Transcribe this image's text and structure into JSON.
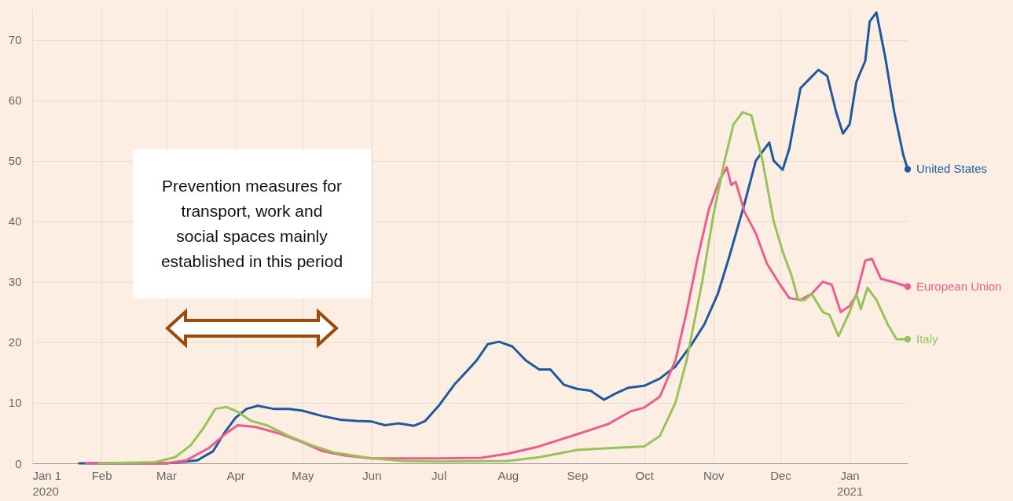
{
  "chart_data": {
    "type": "line",
    "annotations": [
      "Prevention measures for transport, work and social spaces mainly established in this period"
    ],
    "xlim": [
      "2020-01-01",
      "2021-01-27"
    ],
    "ylim": [
      0,
      75
    ],
    "xticks": [
      {
        "value": "2020-01-01",
        "label": "Jan 1\n2020"
      },
      {
        "value": "2020-02-01",
        "label": "Feb"
      },
      {
        "value": "2020-03-01",
        "label": "Mar"
      },
      {
        "value": "2020-04-01",
        "label": "Apr"
      },
      {
        "value": "2020-05-01",
        "label": "May"
      },
      {
        "value": "2020-06-01",
        "label": "Jun"
      },
      {
        "value": "2020-07-01",
        "label": "Jul"
      },
      {
        "value": "2020-08-01",
        "label": "Aug"
      },
      {
        "value": "2020-09-01",
        "label": "Sep"
      },
      {
        "value": "2020-10-01",
        "label": "Oct"
      },
      {
        "value": "2020-11-01",
        "label": "Nov"
      },
      {
        "value": "2020-12-01",
        "label": "Dec"
      },
      {
        "value": "2021-01-01",
        "label": "Jan\n2021"
      }
    ],
    "yticks": [
      0,
      10,
      20,
      30,
      40,
      50,
      60,
      70
    ],
    "grid": true,
    "series": [
      {
        "name": "United States",
        "color": "#1e5aa0",
        "x": [
          "2020-01-22",
          "2020-03-01",
          "2020-03-15",
          "2020-03-22",
          "2020-03-27",
          "2020-04-01",
          "2020-04-06",
          "2020-04-11",
          "2020-04-18",
          "2020-04-25",
          "2020-05-01",
          "2020-05-10",
          "2020-05-18",
          "2020-05-25",
          "2020-06-01",
          "2020-06-07",
          "2020-06-13",
          "2020-06-20",
          "2020-06-25",
          "2020-07-01",
          "2020-07-08",
          "2020-07-13",
          "2020-07-18",
          "2020-07-23",
          "2020-07-28",
          "2020-08-03",
          "2020-08-09",
          "2020-08-15",
          "2020-08-20",
          "2020-08-26",
          "2020-09-01",
          "2020-09-07",
          "2020-09-13",
          "2020-09-18",
          "2020-09-24",
          "2020-10-01",
          "2020-10-08",
          "2020-10-15",
          "2020-10-22",
          "2020-10-28",
          "2020-11-03",
          "2020-11-08",
          "2020-11-15",
          "2020-11-20",
          "2020-11-24",
          "2020-11-26",
          "2020-11-28",
          "2020-12-02",
          "2020-12-05",
          "2020-12-10",
          "2020-12-14",
          "2020-12-18",
          "2020-12-22",
          "2020-12-26",
          "2020-12-29",
          "2021-01-01",
          "2021-01-04",
          "2021-01-08",
          "2021-01-10",
          "2021-01-13",
          "2021-01-17",
          "2021-01-21",
          "2021-01-25",
          "2021-01-27"
        ],
        "values": [
          0,
          0,
          0.5,
          2,
          5,
          7.5,
          9,
          9.5,
          9,
          9,
          8.7,
          7.8,
          7.2,
          7,
          6.9,
          6.3,
          6.6,
          6.2,
          7,
          9.5,
          13,
          15,
          17,
          19.7,
          20.1,
          19.3,
          17,
          15.5,
          15.5,
          13,
          12.3,
          12,
          10.5,
          11.5,
          12.5,
          12.8,
          14,
          16,
          19.5,
          23,
          28,
          34,
          43,
          50,
          52,
          53,
          50,
          48.5,
          52,
          62,
          63.5,
          65,
          64,
          58,
          54.5,
          56,
          63,
          66.5,
          73,
          74.5,
          67,
          58,
          51,
          48.6
        ]
      },
      {
        "name": "European Union",
        "color": "#eb5e8d",
        "x": [
          "2020-01-25",
          "2020-03-01",
          "2020-03-10",
          "2020-03-20",
          "2020-03-28",
          "2020-04-02",
          "2020-04-10",
          "2020-04-20",
          "2020-05-01",
          "2020-05-10",
          "2020-05-20",
          "2020-06-01",
          "2020-07-01",
          "2020-07-20",
          "2020-08-01",
          "2020-08-15",
          "2020-09-01",
          "2020-09-15",
          "2020-09-25",
          "2020-10-01",
          "2020-10-08",
          "2020-10-15",
          "2020-10-20",
          "2020-10-25",
          "2020-10-30",
          "2020-11-04",
          "2020-11-07",
          "2020-11-09",
          "2020-11-11",
          "2020-11-15",
          "2020-11-20",
          "2020-11-25",
          "2020-11-30",
          "2020-12-05",
          "2020-12-10",
          "2020-12-15",
          "2020-12-20",
          "2020-12-24",
          "2020-12-28",
          "2021-01-01",
          "2021-01-04",
          "2021-01-08",
          "2021-01-11",
          "2021-01-15",
          "2021-01-20",
          "2021-01-27"
        ],
        "values": [
          0,
          0,
          0.5,
          2.5,
          5,
          6.3,
          6,
          5,
          3.5,
          2,
          1.3,
          0.8,
          0.8,
          0.9,
          1.6,
          2.8,
          4.8,
          6.5,
          8.6,
          9.2,
          11,
          17,
          25,
          34,
          42,
          47,
          48.9,
          46,
          46.5,
          41.5,
          38,
          33,
          30,
          27.3,
          27,
          28,
          30,
          29.5,
          25,
          26,
          27.8,
          33.5,
          33.8,
          30.5,
          30,
          29.2
        ]
      },
      {
        "name": "Italy",
        "color": "#96c45a",
        "x": [
          "2020-01-31",
          "2020-02-25",
          "2020-03-05",
          "2020-03-12",
          "2020-03-18",
          "2020-03-23",
          "2020-03-28",
          "2020-04-02",
          "2020-04-08",
          "2020-04-15",
          "2020-04-25",
          "2020-05-05",
          "2020-05-15",
          "2020-06-01",
          "2020-06-15",
          "2020-07-01",
          "2020-08-01",
          "2020-08-15",
          "2020-09-01",
          "2020-09-15",
          "2020-10-01",
          "2020-10-08",
          "2020-10-15",
          "2020-10-20",
          "2020-10-27",
          "2020-11-01",
          "2020-11-06",
          "2020-11-10",
          "2020-11-14",
          "2020-11-18",
          "2020-11-23",
          "2020-11-28",
          "2020-12-02",
          "2020-12-06",
          "2020-12-09",
          "2020-12-12",
          "2020-12-15",
          "2020-12-20",
          "2020-12-23",
          "2020-12-27",
          "2021-01-01",
          "2021-01-04",
          "2021-01-06",
          "2021-01-09",
          "2021-01-13",
          "2021-01-18",
          "2021-01-22",
          "2021-01-27"
        ],
        "values": [
          0,
          0.2,
          1,
          3,
          6,
          9,
          9.3,
          8.5,
          7,
          6.3,
          4.5,
          3,
          1.8,
          0.8,
          0.4,
          0.3,
          0.4,
          1,
          2.2,
          2.5,
          2.8,
          4.5,
          10,
          17,
          30,
          41,
          50,
          56,
          58,
          57.5,
          50,
          40,
          35,
          31,
          27,
          27,
          28,
          25,
          24.5,
          21,
          25,
          28,
          25.5,
          29,
          27,
          23,
          20.5,
          20.5
        ]
      }
    ]
  }
}
